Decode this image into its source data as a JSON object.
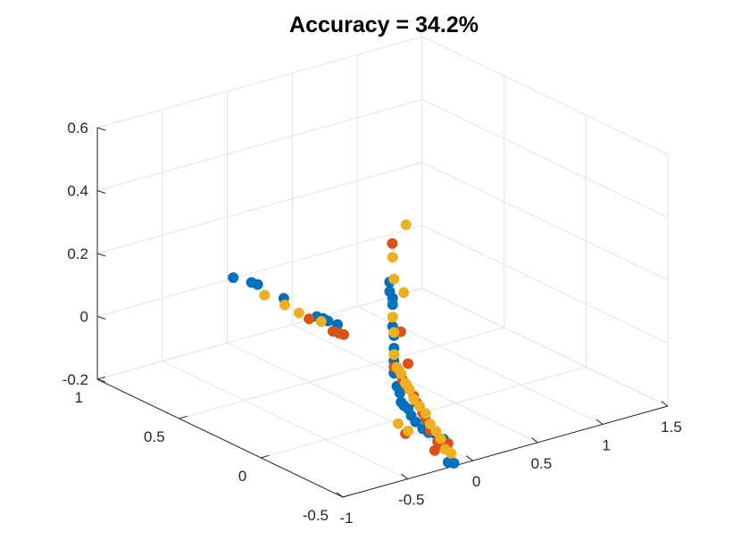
{
  "chart_data": {
    "type": "scatter",
    "view": "3d",
    "title": "Accuracy = 34.2%",
    "xlabel": "",
    "ylabel": "",
    "zlabel": "",
    "grid": true,
    "xlim": [
      -1,
      1.5
    ],
    "ylim": [
      -0.5,
      1
    ],
    "zlim": [
      -0.2,
      0.6
    ],
    "xticks": [
      "-1",
      "-0.5",
      "0",
      "0.5",
      "1",
      "1.5"
    ],
    "yticks": [
      "-0.5",
      "0",
      "0.5",
      "1"
    ],
    "zticks": [
      "-0.2",
      "0",
      "0.2",
      "0.4",
      "0.6"
    ],
    "series": [
      {
        "color": "#0072bd",
        "points": [
          [
            0.02,
            0.98,
            0.01
          ],
          [
            0.06,
            0.9,
            0.01
          ],
          [
            0.07,
            0.87,
            0.01
          ],
          [
            0.12,
            0.75,
            -0.01
          ],
          [
            0.16,
            0.58,
            -0.03
          ],
          [
            0.17,
            0.55,
            -0.03
          ],
          [
            0.17,
            0.52,
            -0.03
          ],
          [
            0.18,
            0.47,
            -0.03
          ],
          [
            -0.06,
            -0.04,
            0.26
          ],
          [
            -0.06,
            -0.04,
            0.26
          ],
          [
            -0.06,
            -0.04,
            0.23
          ],
          [
            -0.05,
            -0.05,
            0.21
          ],
          [
            -0.05,
            -0.05,
            0.19
          ],
          [
            -0.05,
            -0.05,
            0.12
          ],
          [
            -0.04,
            -0.05,
            0.09
          ],
          [
            -0.04,
            -0.05,
            0.05
          ],
          [
            -0.04,
            -0.05,
            0.01
          ],
          [
            -0.04,
            -0.05,
            -0.03
          ],
          [
            -0.03,
            -0.06,
            -0.07
          ],
          [
            -0.02,
            -0.07,
            -0.09
          ],
          [
            -0.01,
            -0.07,
            -0.12
          ],
          [
            0.0,
            -0.08,
            -0.13
          ],
          [
            0.02,
            -0.09,
            -0.14
          ],
          [
            0.03,
            -0.1,
            -0.16
          ],
          [
            0.05,
            -0.11,
            -0.18
          ],
          [
            0.08,
            -0.13,
            -0.2
          ],
          [
            0.1,
            -0.15,
            -0.21
          ],
          [
            0.12,
            -0.18,
            -0.21
          ],
          [
            0.14,
            -0.21,
            -0.22
          ],
          [
            0.15,
            -0.23,
            -0.29
          ],
          [
            0.17,
            -0.25,
            -0.29
          ]
        ]
      },
      {
        "color": "#d95319",
        "points": [
          [
            -0.04,
            -0.04,
            0.38
          ],
          [
            0.0,
            -0.06,
            0.1
          ],
          [
            0.03,
            -0.08,
            0.0
          ],
          [
            0.12,
            0.45,
            -0.04
          ],
          [
            0.13,
            0.42,
            -0.04
          ],
          [
            0.14,
            0.4,
            -0.04
          ],
          [
            0.1,
            0.58,
            -0.03
          ],
          [
            -0.04,
            -0.05,
            -0.01
          ],
          [
            -0.02,
            -0.06,
            -0.02
          ],
          [
            0.0,
            -0.07,
            -0.05
          ],
          [
            0.02,
            -0.08,
            -0.07
          ],
          [
            0.05,
            -0.1,
            -0.1
          ],
          [
            0.06,
            -0.11,
            -0.12
          ],
          [
            0.08,
            -0.13,
            -0.15
          ],
          [
            0.09,
            -0.14,
            -0.17
          ],
          [
            0.1,
            -0.16,
            -0.2
          ],
          [
            0.12,
            -0.19,
            -0.23
          ],
          [
            0.13,
            -0.21,
            -0.24
          ],
          [
            0.11,
            -0.18,
            -0.26
          ],
          [
            0.01,
            -0.08,
            -0.22
          ],
          [
            0.15,
            -0.23,
            -0.23
          ]
        ]
      },
      {
        "color": "#edb120",
        "points": [
          [
            0.09,
            -0.02,
            0.42
          ],
          [
            -0.05,
            -0.05,
            0.34
          ],
          [
            -0.04,
            -0.05,
            0.27
          ],
          [
            0.06,
            -0.03,
            0.21
          ],
          [
            -0.05,
            -0.05,
            0.15
          ],
          [
            0.06,
            0.82,
            -0.01
          ],
          [
            0.09,
            0.72,
            -0.02
          ],
          [
            0.11,
            0.65,
            -0.03
          ],
          [
            0.13,
            0.53,
            -0.03
          ],
          [
            -0.04,
            -0.05,
            0.1
          ],
          [
            -0.04,
            -0.05,
            0.03
          ],
          [
            -0.03,
            -0.06,
            -0.01
          ],
          [
            -0.01,
            -0.07,
            -0.03
          ],
          [
            0.01,
            -0.08,
            -0.06
          ],
          [
            0.03,
            -0.09,
            -0.08
          ],
          [
            0.05,
            -0.1,
            -0.11
          ],
          [
            0.07,
            -0.12,
            -0.13
          ],
          [
            0.09,
            -0.14,
            -0.15
          ],
          [
            0.1,
            -0.16,
            -0.18
          ],
          [
            0.12,
            -0.18,
            -0.2
          ],
          [
            0.13,
            -0.2,
            -0.22
          ],
          [
            0.14,
            -0.22,
            -0.25
          ],
          [
            0.02,
            -0.09,
            -0.21
          ],
          [
            -0.02,
            -0.06,
            -0.19
          ],
          [
            0.16,
            -0.24,
            -0.26
          ]
        ]
      }
    ]
  }
}
